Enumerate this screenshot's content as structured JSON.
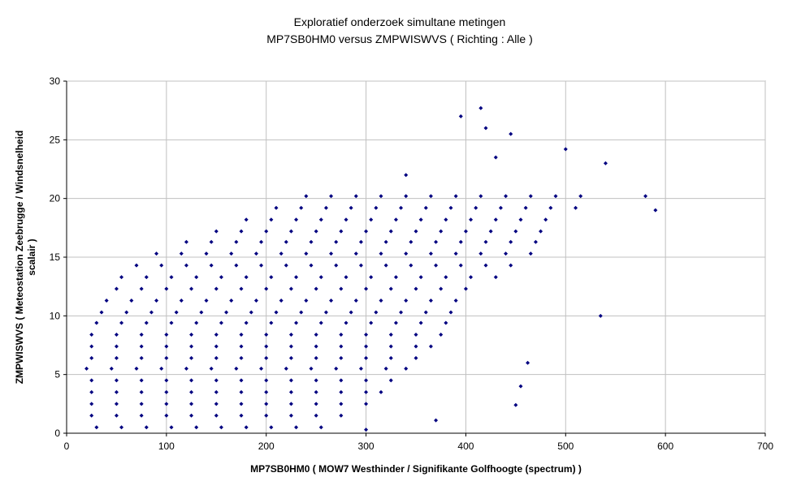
{
  "chart_data": {
    "type": "scatter",
    "title": "Exploratief onderzoek simultane metingen",
    "subtitle": "MP7SB0HM0 versus ZMPWISWVS ( Richting : Alle )",
    "xlabel": "MP7SB0HM0 ( MOW7 Westhinder / Signifikante Golfhoogte (spectrum) )",
    "ylabel": [
      "ZMPWISWVS ( Meteostation Zeebrugge / Windsnelheid",
      "scalair )"
    ],
    "color": "#000080",
    "grid": true,
    "xlim": [
      0,
      700
    ],
    "xticks": [
      0,
      100,
      200,
      300,
      400,
      500,
      600,
      700
    ],
    "ylim": [
      0,
      30
    ],
    "yticks": [
      0,
      5,
      10,
      15,
      20,
      25,
      30
    ],
    "x": [
      30,
      55,
      80,
      105,
      130,
      155,
      180,
      205,
      230,
      255,
      25,
      50,
      75,
      100,
      125,
      150,
      175,
      200,
      225,
      250,
      275,
      25,
      50,
      75,
      100,
      125,
      150,
      175,
      200,
      225,
      250,
      275,
      300,
      25,
      50,
      75,
      100,
      125,
      150,
      175,
      200,
      225,
      250,
      275,
      300,
      315,
      25,
      50,
      75,
      100,
      125,
      150,
      175,
      200,
      225,
      250,
      275,
      300,
      325,
      20,
      45,
      70,
      95,
      120,
      145,
      170,
      195,
      220,
      245,
      270,
      295,
      320,
      340,
      25,
      50,
      75,
      100,
      125,
      150,
      175,
      200,
      225,
      250,
      275,
      300,
      325,
      350,
      25,
      50,
      75,
      100,
      125,
      150,
      175,
      200,
      225,
      250,
      275,
      300,
      325,
      350,
      365,
      25,
      50,
      75,
      100,
      125,
      150,
      175,
      200,
      225,
      250,
      275,
      300,
      325,
      350,
      375,
      30,
      55,
      80,
      105,
      130,
      155,
      180,
      205,
      230,
      255,
      280,
      305,
      330,
      355,
      380,
      35,
      60,
      85,
      110,
      135,
      160,
      185,
      210,
      235,
      260,
      285,
      310,
      335,
      360,
      385,
      40,
      65,
      90,
      115,
      140,
      165,
      190,
      215,
      240,
      265,
      290,
      315,
      340,
      365,
      390,
      50,
      75,
      100,
      125,
      150,
      175,
      200,
      225,
      250,
      275,
      300,
      325,
      350,
      375,
      400,
      55,
      80,
      105,
      130,
      155,
      180,
      205,
      230,
      255,
      280,
      305,
      330,
      355,
      380,
      405,
      430,
      70,
      95,
      120,
      145,
      170,
      195,
      220,
      245,
      270,
      295,
      320,
      345,
      370,
      395,
      420,
      445,
      90,
      115,
      140,
      165,
      190,
      215,
      240,
      265,
      290,
      315,
      340,
      365,
      390,
      415,
      440,
      465,
      120,
      145,
      170,
      195,
      220,
      245,
      270,
      295,
      320,
      345,
      370,
      395,
      420,
      445,
      470,
      150,
      175,
      200,
      225,
      250,
      275,
      300,
      325,
      350,
      375,
      400,
      425,
      450,
      475,
      180,
      205,
      230,
      255,
      280,
      305,
      330,
      355,
      380,
      405,
      430,
      455,
      480,
      210,
      235,
      260,
      285,
      310,
      335,
      360,
      385,
      410,
      435,
      460,
      485,
      510,
      240,
      265,
      290,
      315,
      340,
      365,
      390,
      415,
      440,
      465,
      490,
      515,
      415,
      395,
      420,
      445,
      500,
      540,
      580,
      590,
      535,
      462,
      450,
      370,
      300,
      455,
      340,
      430
    ],
    "values": [
      0.5,
      0.5,
      0.5,
      0.5,
      0.5,
      0.5,
      0.5,
      0.5,
      0.5,
      0.5,
      1.5,
      1.5,
      1.5,
      1.5,
      1.5,
      1.5,
      1.5,
      1.5,
      1.5,
      1.5,
      1.5,
      2.5,
      2.5,
      2.5,
      2.5,
      2.5,
      2.5,
      2.5,
      2.5,
      2.5,
      2.5,
      2.5,
      2.5,
      3.5,
      3.5,
      3.5,
      3.5,
      3.5,
      3.5,
      3.5,
      3.5,
      3.5,
      3.5,
      3.5,
      3.5,
      3.5,
      4.5,
      4.5,
      4.5,
      4.5,
      4.5,
      4.5,
      4.5,
      4.5,
      4.5,
      4.5,
      4.5,
      4.5,
      4.5,
      5.5,
      5.5,
      5.5,
      5.5,
      5.5,
      5.5,
      5.5,
      5.5,
      5.5,
      5.5,
      5.5,
      5.5,
      5.5,
      5.5,
      6.4,
      6.4,
      6.4,
      6.4,
      6.4,
      6.4,
      6.4,
      6.4,
      6.4,
      6.4,
      6.4,
      6.4,
      6.4,
      6.4,
      7.4,
      7.4,
      7.4,
      7.4,
      7.4,
      7.4,
      7.4,
      7.4,
      7.4,
      7.4,
      7.4,
      7.4,
      7.4,
      7.4,
      7.4,
      8.4,
      8.4,
      8.4,
      8.4,
      8.4,
      8.4,
      8.4,
      8.4,
      8.4,
      8.4,
      8.4,
      8.4,
      8.4,
      8.4,
      8.4,
      9.4,
      9.4,
      9.4,
      9.4,
      9.4,
      9.4,
      9.4,
      9.4,
      9.4,
      9.4,
      9.4,
      9.4,
      9.4,
      9.4,
      9.4,
      10.3,
      10.3,
      10.3,
      10.3,
      10.3,
      10.3,
      10.3,
      10.3,
      10.3,
      10.3,
      10.3,
      10.3,
      10.3,
      10.3,
      10.3,
      11.3,
      11.3,
      11.3,
      11.3,
      11.3,
      11.3,
      11.3,
      11.3,
      11.3,
      11.3,
      11.3,
      11.3,
      11.3,
      11.3,
      11.3,
      12.3,
      12.3,
      12.3,
      12.3,
      12.3,
      12.3,
      12.3,
      12.3,
      12.3,
      12.3,
      12.3,
      12.3,
      12.3,
      12.3,
      12.3,
      13.3,
      13.3,
      13.3,
      13.3,
      13.3,
      13.3,
      13.3,
      13.3,
      13.3,
      13.3,
      13.3,
      13.3,
      13.3,
      13.3,
      13.3,
      13.3,
      14.3,
      14.3,
      14.3,
      14.3,
      14.3,
      14.3,
      14.3,
      14.3,
      14.3,
      14.3,
      14.3,
      14.3,
      14.3,
      14.3,
      14.3,
      14.3,
      15.3,
      15.3,
      15.3,
      15.3,
      15.3,
      15.3,
      15.3,
      15.3,
      15.3,
      15.3,
      15.3,
      15.3,
      15.3,
      15.3,
      15.3,
      15.3,
      16.3,
      16.3,
      16.3,
      16.3,
      16.3,
      16.3,
      16.3,
      16.3,
      16.3,
      16.3,
      16.3,
      16.3,
      16.3,
      16.3,
      16.3,
      17.2,
      17.2,
      17.2,
      17.2,
      17.2,
      17.2,
      17.2,
      17.2,
      17.2,
      17.2,
      17.2,
      17.2,
      17.2,
      17.2,
      18.2,
      18.2,
      18.2,
      18.2,
      18.2,
      18.2,
      18.2,
      18.2,
      18.2,
      18.2,
      18.2,
      18.2,
      18.2,
      19.2,
      19.2,
      19.2,
      19.2,
      19.2,
      19.2,
      19.2,
      19.2,
      19.2,
      19.2,
      19.2,
      19.2,
      19.2,
      20.2,
      20.2,
      20.2,
      20.2,
      20.2,
      20.2,
      20.2,
      20.2,
      20.2,
      20.2,
      20.2,
      20.2,
      27.7,
      27,
      26,
      25.5,
      24.2,
      23,
      20.2,
      19,
      10,
      6,
      2.4,
      1.1,
      0.3,
      4,
      22,
      23.5
    ]
  }
}
